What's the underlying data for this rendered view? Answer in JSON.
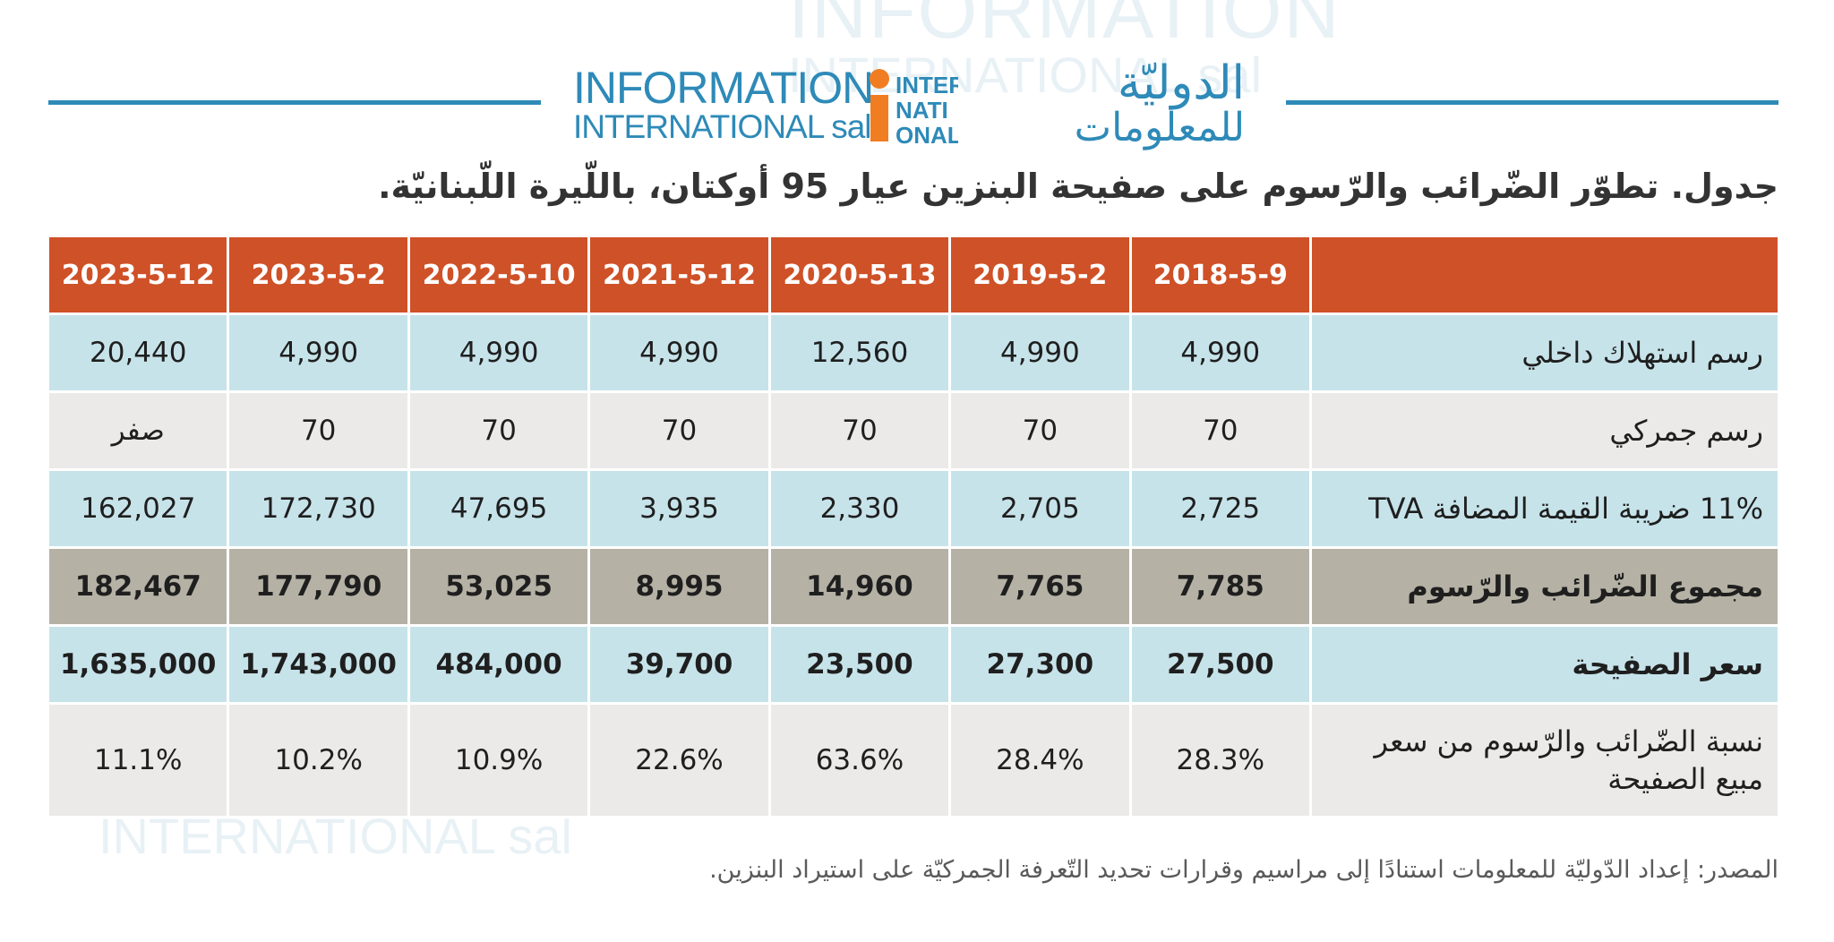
{
  "header": {
    "logo_en_line1": "INFORMATION",
    "logo_en_line2": "INTERNATIONAL sal",
    "logo_ar_line1": "الدوليّة",
    "logo_ar_line2": "للمعلومات",
    "logo_mark_text": "INTER NATI ONAL",
    "accent_color": "#2e8ab8",
    "mark_color": "#f07d22"
  },
  "title": "جدول. تطوّر الضّرائب والرّسوم على صفيحة البنزين عيار 95 أوكتان، باللّيرة اللّبنانيّة.",
  "table": {
    "header_color": "#cf5127",
    "dates": [
      "2018-5-9",
      "2019-5-2",
      "2020-5-13",
      "2021-5-12",
      "2022-5-10",
      "2023-5-2",
      "2023-5-12"
    ],
    "rows": [
      {
        "label": "رسم استهلاك داخلي",
        "values": [
          "4,990",
          "4,990",
          "12,560",
          "4,990",
          "4,990",
          "4,990",
          "20,440"
        ]
      },
      {
        "label": "رسم جمركي",
        "values": [
          "70",
          "70",
          "70",
          "70",
          "70",
          "70",
          "صفر"
        ]
      },
      {
        "label": "11%  ضريبة القيمة المضافة TVA",
        "values": [
          "2,725",
          "2,705",
          "2,330",
          "3,935",
          "47,695",
          "172,730",
          "162,027"
        ]
      },
      {
        "label": "مجموع الضّرائب والرّسوم",
        "values": [
          "7,785",
          "7,765",
          "14,960",
          "8,995",
          "53,025",
          "177,790",
          "182,467"
        ]
      },
      {
        "label": "سعر الصفيحة",
        "values": [
          "27,500",
          "27,300",
          "23,500",
          "39,700",
          "484,000",
          "1,743,000",
          "1,635,000"
        ]
      },
      {
        "label": "نسبة الضّرائب والرّسوم من سعر مبيع الصفيحة",
        "values": [
          "28.3%",
          "28.4%",
          "63.6%",
          "22.6%",
          "10.9%",
          "10.2%",
          "11.1%"
        ]
      }
    ]
  },
  "source": "المصدر: إعداد الدّوليّة للمعلومات استنادًا إلى مراسيم وقرارات تحديد التّعرفة الجمركيّة على استيراد البنزين."
}
